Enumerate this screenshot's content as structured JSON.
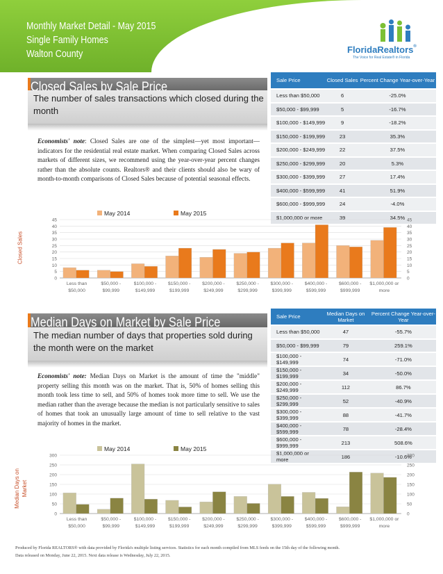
{
  "header": {
    "line1": "Monthly Market Detail - May 2015",
    "line2": "Single Family Homes",
    "line3": "Walton County",
    "logo_text": "FloridaRealtors",
    "logo_tagline": "The Voice for Real Estate® in Florida",
    "logo_reg": "®",
    "colors": {
      "green": "#7cc035",
      "blue": "#2e7dbf",
      "orange": "#e97a1c"
    }
  },
  "closed_sales": {
    "title": "Closed Sales by Sale Price",
    "description": "The number of sales transactions which closed during the month",
    "note_label": "Economists' note",
    "note_text": ": Closed Sales are one of the simplest—yet most important—indicators for the residential real estate market. When comparing Closed Sales across markets of different sizes, we recommend using the year-over-year percent changes rather than the absolute counts. Realtors® and their clients should also be wary of month-to-month comparisons of Closed Sales because of potential seasonal effects.",
    "table_headers": [
      "Sale Price",
      "Closed Sales",
      "Percent Change Year-over-Year"
    ],
    "rows": [
      {
        "price": "Less than $50,000",
        "value": "6",
        "pct": "-25.0%"
      },
      {
        "price": "$50,000 - $99,999",
        "value": "5",
        "pct": "-16.7%"
      },
      {
        "price": "$100,000 - $149,999",
        "value": "9",
        "pct": "-18.2%"
      },
      {
        "price": "$150,000 - $199,999",
        "value": "23",
        "pct": "35.3%"
      },
      {
        "price": "$200,000 - $249,999",
        "value": "22",
        "pct": "37.5%"
      },
      {
        "price": "$250,000 - $299,999",
        "value": "20",
        "pct": "5.3%"
      },
      {
        "price": "$300,000 - $399,999",
        "value": "27",
        "pct": "17.4%"
      },
      {
        "price": "$400,000 - $599,999",
        "value": "41",
        "pct": "51.9%"
      },
      {
        "price": "$600,000 - $999,999",
        "value": "24",
        "pct": "-4.0%"
      },
      {
        "price": "$1,000,000 or more",
        "value": "39",
        "pct": "34.5%"
      }
    ]
  },
  "median_days": {
    "title": "Median Days on Market by Sale Price",
    "description": "The median number of days that properties sold during the month were on the market",
    "note_label": "Economists' note:",
    "note_text": " Median Days on Market is the amount of time the \"middle\" property selling this month was on the market. That is, 50% of homes selling this month took less time to sell, and 50% of homes took more time to sell. We use the median rather than the average because the median is not particularly sensitive to sales of homes that took an unusually large amount of time to sell relative to the vast majority of homes in the market.",
    "table_headers": [
      "Sale Price",
      "Median Days on Market",
      "Percent Change Year-over-Year"
    ],
    "rows": [
      {
        "price": "Less than $50,000",
        "value": "47",
        "pct": "-55.7%"
      },
      {
        "price": "$50,000 - $99,999",
        "value": "79",
        "pct": "259.1%"
      },
      {
        "price": "$100,000 - $149,999",
        "value": "74",
        "pct": "-71.0%"
      },
      {
        "price": "$150,000 - $199,999",
        "value": "34",
        "pct": "-50.0%"
      },
      {
        "price": "$200,000 - $249,999",
        "value": "112",
        "pct": "86.7%"
      },
      {
        "price": "$250,000 - $299,999",
        "value": "52",
        "pct": "-40.9%"
      },
      {
        "price": "$300,000 - $399,999",
        "value": "88",
        "pct": "-41.7%"
      },
      {
        "price": "$400,000 - $599,999",
        "value": "78",
        "pct": "-28.4%"
      },
      {
        "price": "$600,000 - $999,999",
        "value": "213",
        "pct": "508.6%"
      },
      {
        "price": "$1,000,000 or more",
        "value": "186",
        "pct": "-10.6%"
      }
    ]
  },
  "chart_data": [
    {
      "type": "bar",
      "categories": [
        "Less than $50,000",
        "$50,000 - $99,999",
        "$100,000 - $149,999",
        "$150,000 - $199,999",
        "$200,000 - $249,999",
        "$250,000 - $299,999",
        "$300,000 - $399,999",
        "$400,000 - $599,999",
        "$600,000 - $999,999",
        "$1,000,000 or more"
      ],
      "series": [
        {
          "name": "May 2014",
          "color": "#f2b27a",
          "values": [
            8,
            6,
            11,
            17,
            16,
            19,
            23,
            27,
            25,
            29
          ]
        },
        {
          "name": "May 2015",
          "color": "#e97a1c",
          "values": [
            6,
            5,
            9,
            23,
            22,
            20,
            27,
            41,
            24,
            39
          ]
        }
      ],
      "ylabel": "Closed Sales",
      "ylim": [
        0,
        45
      ],
      "yticks": [
        0,
        5,
        10,
        15,
        20,
        25,
        30,
        35,
        40,
        45
      ],
      "grid": true,
      "legend": "top"
    },
    {
      "type": "bar",
      "categories": [
        "Less than $50,000",
        "$50,000 - $99,999",
        "$100,000 - $149,999",
        "$150,000 - $199,999",
        "$200,000 - $249,999",
        "$250,000 - $299,999",
        "$300,000 - $399,999",
        "$400,000 - $599,999",
        "$600,000 - $999,999",
        "$1,000,000 or more"
      ],
      "series": [
        {
          "name": "May 2014",
          "color": "#c9c39a",
          "values": [
            106,
            22,
            255,
            68,
            60,
            88,
            151,
            109,
            35,
            208
          ]
        },
        {
          "name": "May 2015",
          "color": "#8a8442",
          "values": [
            47,
            79,
            74,
            34,
            112,
            52,
            88,
            78,
            213,
            186
          ]
        }
      ],
      "ylabel": "Median Days on Market",
      "ylim": [
        0,
        300
      ],
      "yticks": [
        0,
        50,
        100,
        150,
        200,
        250,
        300
      ],
      "grid": true,
      "legend": "top"
    }
  ],
  "footer": {
    "line1": "Produced by Florida REALTORS® with data provided by Florida's multiple listing services. Statistics for each month compiled from MLS feeds on the 15th day of the following month.",
    "line2": "Data released on Monday, June 22, 2015. Next data release is Wednesday, July 22, 2015."
  }
}
